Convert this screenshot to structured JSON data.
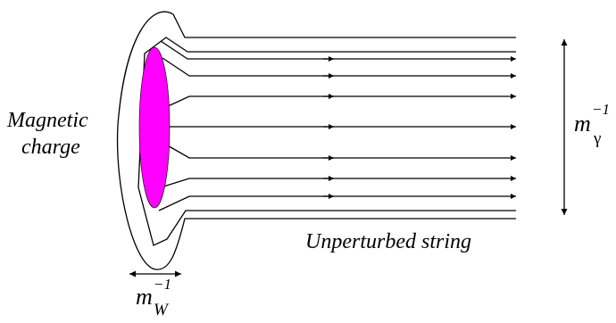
{
  "labels": {
    "magnetic_line1": "Magnetic",
    "magnetic_line2": "charge",
    "unperturbed": "Unperturbed string",
    "photon_mass_base": "m",
    "photon_mass_exp": "−1",
    "photon_mass_sub": "γ",
    "w_mass_base": "m",
    "w_mass_exp": "−1",
    "w_mass_sub": "W"
  },
  "colors": {
    "charge": "#ff00ff",
    "lines": "#000000"
  }
}
